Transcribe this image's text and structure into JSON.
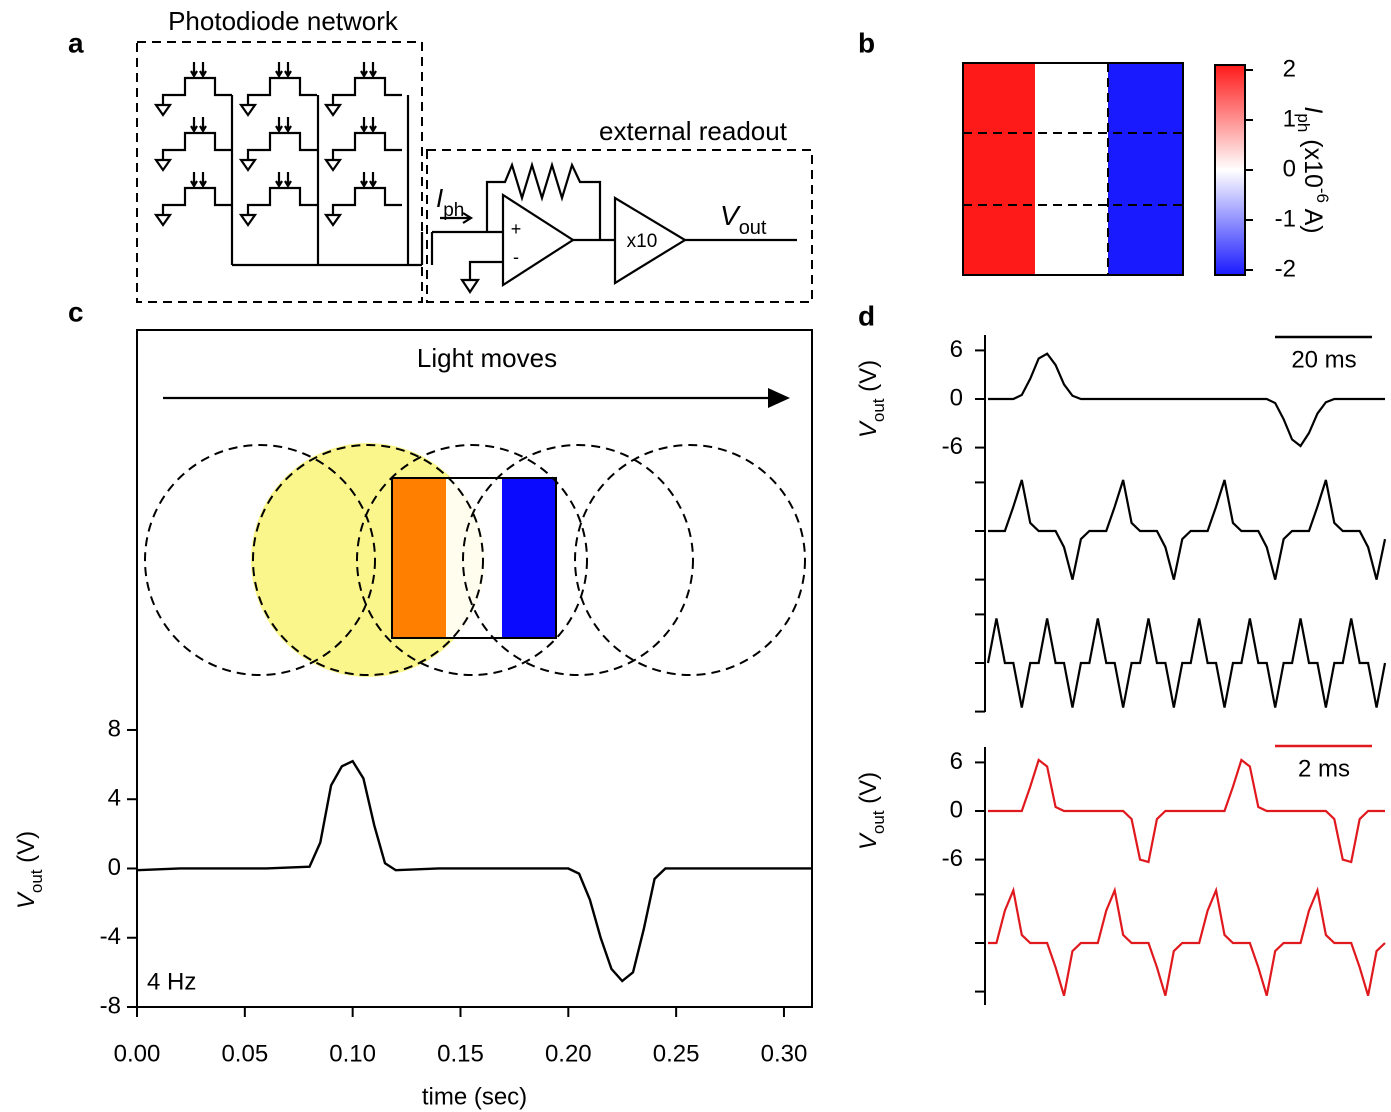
{
  "panel_labels": {
    "a": "a",
    "b": "b",
    "c": "c",
    "d": "d"
  },
  "circuit": {
    "network_title": "Photodiode network",
    "readout_title": "external readout",
    "current": "I",
    "current_sub": "ph",
    "output": "V",
    "output_sub": "out",
    "gain": "x10",
    "plus": "+",
    "minus": "-"
  },
  "chart_data": [
    {
      "type": "colorbar",
      "ylim": [
        -2.1,
        2.1
      ],
      "yticks": [
        2,
        1,
        0,
        -1,
        -2
      ],
      "colors": [
        "#1a1aff",
        "#ffffff",
        "#ff1a1a"
      ],
      "label": "I",
      "label_sub": "ph",
      "label_mid": " (x10",
      "label_sup": "-6",
      "label_end": " A)"
    },
    {
      "type": "line",
      "title": "Light moves",
      "annotation": "4 Hz",
      "xlabel": "time (sec)",
      "ylabel": "V",
      "ylabel_sub": "out",
      "ylabel_unit": " (V)",
      "color": "#000000",
      "x": [
        0,
        0.02,
        0.04,
        0.06,
        0.08,
        0.085,
        0.09,
        0.095,
        0.1,
        0.105,
        0.11,
        0.115,
        0.12,
        0.14,
        0.16,
        0.18,
        0.2,
        0.205,
        0.21,
        0.215,
        0.22,
        0.225,
        0.23,
        0.235,
        0.24,
        0.245,
        0.26,
        0.28,
        0.3,
        0.313
      ],
      "values": [
        -0.1,
        0,
        0,
        0,
        0.1,
        1.5,
        4.8,
        5.9,
        6.2,
        5.2,
        2.5,
        0.3,
        -0.1,
        0,
        0,
        0,
        0,
        -0.3,
        -1.8,
        -4,
        -5.8,
        -6.5,
        -6,
        -3.5,
        -0.6,
        0,
        0,
        0,
        0,
        0
      ],
      "xlim": [
        0,
        0.313
      ],
      "ylim": [
        -8,
        31.1
      ],
      "xticks": [
        {
          "value": 0,
          "label": "0.00"
        },
        0.05,
        {
          "value": 0.1,
          "label": "0.10"
        },
        0.15,
        {
          "value": 0.2,
          "label": "0.20"
        },
        0.25,
        {
          "value": 0.3,
          "label": "0.30"
        }
      ],
      "yticks": [
        8,
        4,
        0,
        -4,
        -8
      ]
    },
    {
      "type": "line",
      "color": "#000000",
      "ylim": [
        -8.15,
        8.15
      ],
      "yticks": [
        6,
        0,
        -6
      ],
      "ylabel": "V",
      "ylabel_sub": "out",
      "ylabel_unit": " (V)",
      "scale_bar": "20 ms",
      "values": [
        0,
        0,
        0,
        0,
        0.5,
        2.5,
        5,
        5.6,
        4.2,
        1.8,
        0.4,
        0,
        0,
        0,
        0,
        0,
        0,
        0,
        0,
        0,
        0,
        0,
        0,
        0,
        0,
        0,
        0,
        0,
        0,
        0,
        0,
        0,
        0,
        0,
        -0.5,
        -2.5,
        -5,
        -5.8,
        -4.2,
        -1.8,
        -0.4,
        0,
        0,
        0,
        0,
        0,
        0,
        0
      ]
    },
    {
      "type": "line",
      "color": "#000000",
      "ylim": [
        -8.15,
        8.15
      ],
      "values": [
        0,
        0,
        0,
        3,
        6.3,
        1,
        0,
        0,
        0,
        -2,
        -6,
        -1,
        0,
        0,
        0,
        3,
        6.3,
        1,
        0,
        0,
        0,
        -2,
        -6,
        -1,
        0,
        0,
        0,
        3,
        6.3,
        1,
        0,
        0,
        0,
        -2,
        -6,
        -1,
        0,
        0,
        0,
        3,
        6.3,
        1,
        0,
        0,
        0,
        -2,
        -6,
        -1
      ]
    },
    {
      "type": "line",
      "color": "#000000",
      "ylim": [
        -8.15,
        8.15
      ],
      "values": [
        0,
        5.5,
        0,
        0,
        -5.5,
        0,
        0,
        5.5,
        0,
        0,
        -5.5,
        0,
        0,
        5.5,
        0,
        0,
        -5.5,
        0,
        0,
        5.5,
        0,
        0,
        -5.5,
        0,
        0,
        5.5,
        0,
        0,
        -5.5,
        0,
        0,
        5.5,
        0,
        0,
        -5.5,
        0,
        0,
        5.5,
        0,
        0,
        -5.5,
        0,
        0,
        5.5,
        0,
        0,
        -5.5,
        0
      ]
    },
    {
      "type": "line",
      "color": "#e0191e",
      "ylim": [
        -8.15,
        8.15
      ],
      "yticks": [
        6,
        0,
        -6
      ],
      "ylabel": "V",
      "ylabel_sub": "out",
      "ylabel_unit": " (V)",
      "scale_bar": "2 ms",
      "values": [
        0,
        0,
        0,
        0,
        0,
        3,
        6.3,
        5.5,
        0.5,
        0,
        0,
        0,
        0,
        0,
        0,
        0,
        0,
        -1,
        -6,
        -6.3,
        -1,
        0,
        0,
        0,
        0,
        0,
        0,
        0,
        0,
        3,
        6.3,
        5.5,
        0.5,
        0,
        0,
        0,
        0,
        0,
        0,
        0,
        0,
        -1,
        -6,
        -6.3,
        -1,
        0,
        0,
        0
      ]
    },
    {
      "type": "line",
      "color": "#e0191e",
      "ylim": [
        -8.15,
        8.15
      ],
      "values": [
        0,
        0,
        4,
        6.5,
        1,
        0,
        0,
        0,
        -3,
        -6.5,
        -1,
        0,
        0,
        0,
        4,
        6.5,
        1,
        0,
        0,
        0,
        -3,
        -6.5,
        -1,
        0,
        0,
        0,
        4,
        6.5,
        1,
        0,
        0,
        0,
        -3,
        -6.5,
        -1,
        0,
        0,
        0,
        4,
        6.5,
        1,
        0,
        0,
        0,
        -3,
        -6.5,
        -1,
        0
      ]
    }
  ]
}
